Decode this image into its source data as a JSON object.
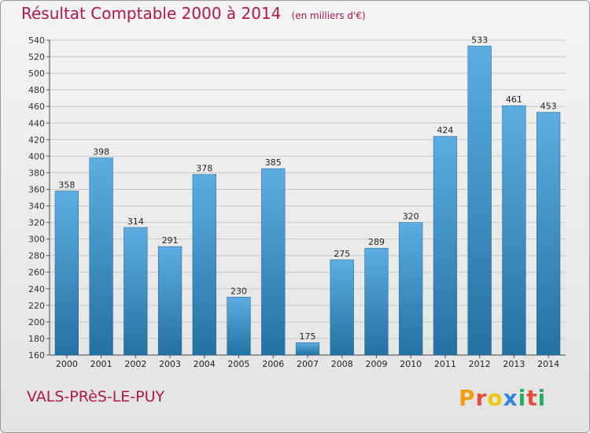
{
  "header": {
    "title": "Résultat Comptable 2000 à 2014",
    "subtitle": "(en milliers d'€)"
  },
  "footer": {
    "place": "VALS-PRèS-LE-PUY",
    "logo_letters": [
      "P",
      "r",
      "o",
      "x",
      "i",
      "t",
      "i"
    ],
    "logo_colors": [
      "#f39c12",
      "#e74c3c",
      "#f1c40f",
      "#2e86de",
      "#27ae60",
      "#e74c3c",
      "#27ae60"
    ]
  },
  "colors": {
    "bar_top": "#5dade2",
    "bar_bottom": "#2471a3",
    "accent": "#b0174f"
  },
  "chart_data": {
    "type": "bar",
    "title": "Résultat Comptable 2000 à 2014",
    "subtitle": "(en milliers d'€)",
    "xlabel": "",
    "ylabel": "",
    "categories": [
      "2000",
      "2001",
      "2002",
      "2003",
      "2004",
      "2005",
      "2006",
      "2007",
      "2008",
      "2009",
      "2010",
      "2011",
      "2012",
      "2013",
      "2014"
    ],
    "values": [
      358,
      398,
      314,
      291,
      378,
      230,
      385,
      175,
      275,
      289,
      320,
      424,
      533,
      461,
      453
    ],
    "ylim": [
      160,
      540
    ],
    "yticks": [
      160,
      180,
      200,
      220,
      240,
      260,
      280,
      300,
      320,
      340,
      360,
      380,
      400,
      420,
      440,
      460,
      480,
      500,
      520,
      540
    ],
    "grid": true,
    "data_labels": true
  }
}
